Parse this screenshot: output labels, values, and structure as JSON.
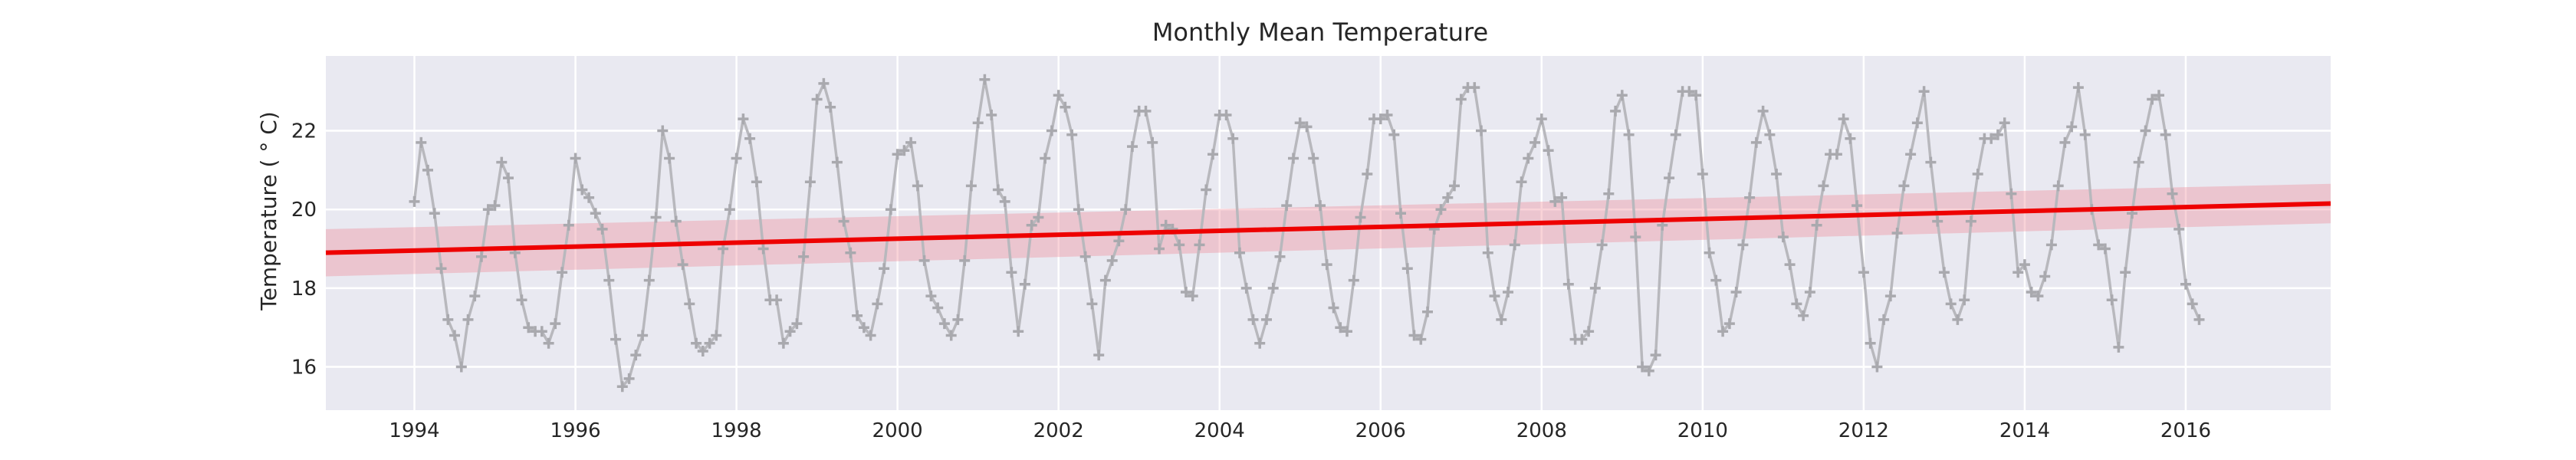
{
  "chart_data": {
    "type": "line",
    "title": "Monthly Mean Temperature",
    "xlabel": "",
    "ylabel": "Temperature ( ° C)",
    "xlim": [
      1992.9,
      2017.8
    ],
    "ylim": [
      14.9,
      23.9
    ],
    "x_ticks": [
      1994,
      1996,
      1998,
      2000,
      2002,
      2004,
      2006,
      2008,
      2010,
      2012,
      2014,
      2016
    ],
    "x_tick_labels": [
      "1994",
      "1996",
      "1998",
      "2000",
      "2002",
      "2004",
      "2006",
      "2008",
      "2010",
      "2012",
      "2014",
      "2016"
    ],
    "y_ticks": [
      16,
      18,
      20,
      22
    ],
    "y_tick_labels": [
      "16",
      "18",
      "20",
      "22"
    ],
    "grid": true,
    "legend": "none",
    "series": [
      {
        "kind": "monthly observations",
        "marker": "plus",
        "color": "#b8b8bd",
        "x_start": 1994.0,
        "x_step_months": 1,
        "values": [
          20.2,
          21.7,
          21.0,
          19.9,
          18.5,
          17.2,
          16.8,
          16.0,
          17.2,
          17.8,
          18.8,
          20.0,
          20.1,
          21.2,
          20.8,
          18.9,
          17.7,
          17.0,
          16.9,
          16.9,
          16.6,
          17.1,
          18.4,
          19.6,
          21.3,
          20.5,
          20.3,
          19.9,
          19.5,
          18.2,
          16.7,
          15.5,
          15.7,
          16.3,
          16.8,
          18.2,
          19.8,
          22.0,
          21.3,
          19.7,
          18.6,
          17.6,
          16.6,
          16.4,
          16.6,
          16.8,
          19.0,
          20.0,
          21.3,
          22.3,
          21.8,
          20.7,
          19.0,
          17.7,
          17.7,
          16.6,
          16.9,
          17.1,
          18.8,
          20.7,
          22.8,
          23.2,
          22.6,
          21.2,
          19.7,
          18.9,
          17.3,
          17.0,
          16.8,
          17.6,
          18.5,
          20.0,
          21.4,
          21.5,
          21.7,
          20.6,
          18.7,
          17.8,
          17.5,
          17.1,
          16.8,
          17.2,
          18.7,
          20.6,
          22.2,
          23.3,
          22.4,
          20.5,
          20.2,
          18.4,
          16.9,
          18.1,
          19.6,
          19.8,
          21.3,
          22.0,
          22.9,
          22.6,
          21.9,
          20.0,
          18.8,
          17.6,
          16.3,
          18.2,
          18.7,
          19.2,
          20.0,
          21.6,
          22.5,
          22.5,
          21.7,
          19.0,
          19.6,
          19.5,
          19.1,
          17.9,
          17.8,
          19.1,
          20.5,
          21.4,
          22.4,
          22.4,
          21.8,
          18.9,
          18.0,
          17.2,
          16.6,
          17.2,
          18.0,
          18.8,
          20.1,
          21.3,
          22.2,
          22.1,
          21.3,
          20.1,
          18.6,
          17.5,
          17.0,
          16.9,
          18.2,
          19.8,
          20.9,
          22.3,
          22.3,
          22.4,
          21.9,
          19.9,
          18.5,
          16.8,
          16.7,
          17.4,
          19.5,
          20.0,
          20.3,
          20.6,
          22.8,
          23.1,
          23.1,
          22.0,
          18.9,
          17.8,
          17.2,
          17.9,
          19.1,
          20.7,
          21.3,
          21.7,
          22.3,
          21.5,
          20.2,
          20.3,
          18.1,
          16.7,
          16.7,
          16.9,
          18.0,
          19.1,
          20.4,
          22.5,
          22.9,
          21.9,
          19.3,
          16.0,
          15.9,
          16.3,
          19.6,
          20.8,
          21.9,
          23.0,
          23.0,
          22.9,
          20.9,
          18.9,
          18.2,
          16.9,
          17.1,
          17.9,
          19.1,
          20.3,
          21.7,
          22.5,
          21.9,
          20.9,
          19.3,
          18.6,
          17.6,
          17.3,
          17.9,
          19.6,
          20.6,
          21.4,
          21.4,
          22.3,
          21.8,
          20.1,
          18.4,
          16.6,
          16.0,
          17.2,
          17.8,
          19.4,
          20.6,
          21.4,
          22.2,
          23.0,
          21.2,
          19.7,
          18.4,
          17.6,
          17.2,
          17.7,
          19.7,
          20.9,
          21.8,
          21.8,
          21.9,
          22.2,
          20.4,
          18.4,
          18.6,
          17.9,
          17.8,
          18.3,
          19.1,
          20.6,
          21.7,
          22.1,
          23.1,
          21.9,
          20.0,
          19.1,
          19.0,
          17.7,
          16.5,
          18.4,
          19.9,
          21.2,
          22.0,
          22.8,
          22.9,
          21.9,
          20.4,
          19.5,
          18.1,
          17.6,
          17.2
        ]
      },
      {
        "kind": "linear trend",
        "color": "#ee0000",
        "x": [
          1992.9,
          2017.8
        ],
        "values": [
          18.9,
          20.15
        ],
        "ci_lower": [
          18.3,
          19.65
        ],
        "ci_upper": [
          19.5,
          20.65
        ],
        "band_color": "#f08c98"
      }
    ],
    "colors": {
      "background": "#e9e9f1",
      "grid": "#ffffff"
    }
  }
}
